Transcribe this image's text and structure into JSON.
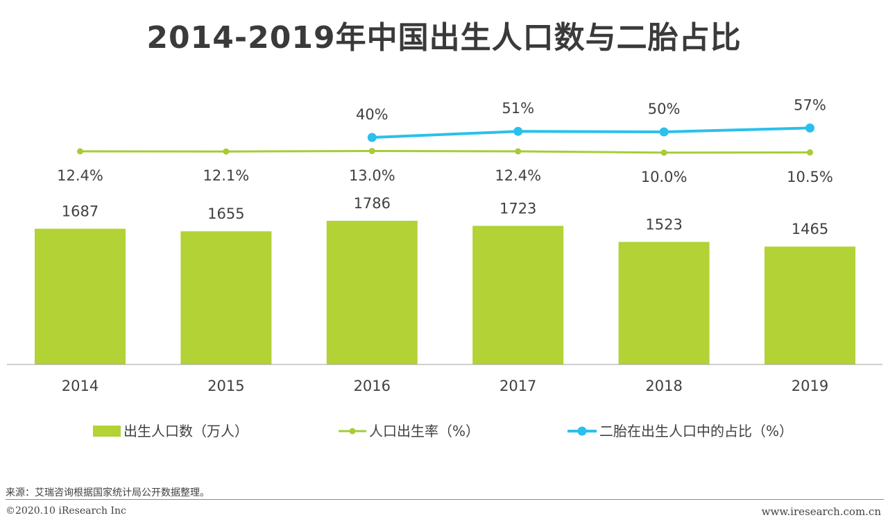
{
  "title": "2014-2019年中国出生人口数与二胎占比",
  "source": "来源：艾瑞咨询根据国家统计局公开数据整理。",
  "copyright": "©2020.10 iResearch Inc",
  "website": "www.iresearch.com.cn",
  "colors": {
    "bar": "#b2d235",
    "birth_rate_line": "#a6cc38",
    "second_child_line": "#2ac0ec"
  },
  "chart_data": {
    "type": "bar",
    "categories": [
      "2014",
      "2015",
      "2016",
      "2017",
      "2018",
      "2019"
    ],
    "series": [
      {
        "name": "出生人口数（万人）",
        "type": "bar",
        "values": [
          1687,
          1655,
          1786,
          1723,
          1523,
          1465
        ],
        "labels": [
          "1687",
          "1655",
          "1786",
          "1723",
          "1523",
          "1465"
        ]
      },
      {
        "name": "人口出生率（%）",
        "type": "line",
        "values": [
          12.4,
          12.1,
          13.0,
          12.4,
          10.0,
          10.5
        ],
        "labels": [
          "12.4%",
          "12.1%",
          "13.0%",
          "12.4%",
          "10.0%",
          "10.5%"
        ]
      },
      {
        "name": "二胎在出生人口中的占比（%）",
        "type": "line",
        "values": [
          null,
          null,
          40,
          51,
          50,
          57
        ],
        "labels": [
          "",
          "",
          "40%",
          "51%",
          "50%",
          "57%"
        ]
      }
    ],
    "legend": "bottom"
  }
}
